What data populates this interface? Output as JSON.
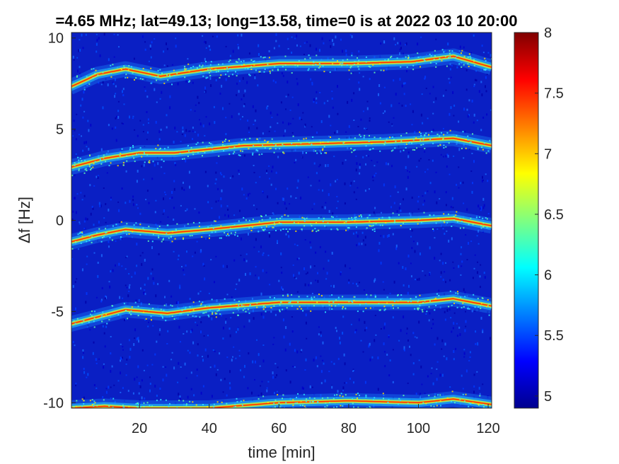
{
  "chart_data": {
    "type": "heatmap",
    "title": "=4.65 MHz;  lat=49.13; long=13.58, time=0 is at 2022 03 10 20:00",
    "xlabel": "time [min]",
    "ylabel": "Δf [Hz]",
    "xlim": [
      0.5,
      121
    ],
    "ylim": [
      -10.3,
      10.3
    ],
    "xticks": [
      20,
      40,
      60,
      80,
      100,
      120
    ],
    "yticks": [
      -10,
      -5,
      0,
      5,
      10
    ],
    "colorbar": {
      "colormap": "jet",
      "limits": [
        4.9,
        8
      ],
      "ticks": [
        5,
        5.5,
        6,
        6.5,
        7,
        7.5,
        8
      ]
    },
    "traces": [
      {
        "offset_hz": 10,
        "points": [
          [
            0,
            7.3
          ],
          [
            8,
            8.0
          ],
          [
            16,
            8.3
          ],
          [
            26,
            7.9
          ],
          [
            40,
            8.3
          ],
          [
            60,
            8.6
          ],
          [
            80,
            8.6
          ],
          [
            98,
            8.7
          ],
          [
            110,
            9.0
          ],
          [
            121,
            8.4
          ]
        ]
      },
      {
        "offset_hz": 5,
        "points": [
          [
            0,
            2.9
          ],
          [
            10,
            3.4
          ],
          [
            20,
            3.7
          ],
          [
            30,
            3.7
          ],
          [
            50,
            4.1
          ],
          [
            70,
            4.2
          ],
          [
            90,
            4.3
          ],
          [
            110,
            4.5
          ],
          [
            121,
            4.1
          ]
        ]
      },
      {
        "offset_hz": 0,
        "points": [
          [
            0,
            -1.2
          ],
          [
            8,
            -0.8
          ],
          [
            16,
            -0.5
          ],
          [
            28,
            -0.7
          ],
          [
            40,
            -0.5
          ],
          [
            60,
            -0.1
          ],
          [
            80,
            -0.1
          ],
          [
            100,
            0.0
          ],
          [
            110,
            0.1
          ],
          [
            121,
            -0.3
          ]
        ]
      },
      {
        "offset_hz": -5,
        "points": [
          [
            0,
            -5.7
          ],
          [
            8,
            -5.3
          ],
          [
            16,
            -4.9
          ],
          [
            28,
            -5.1
          ],
          [
            40,
            -4.8
          ],
          [
            60,
            -4.5
          ],
          [
            80,
            -4.5
          ],
          [
            100,
            -4.5
          ],
          [
            110,
            -4.3
          ],
          [
            121,
            -4.7
          ]
        ]
      },
      {
        "offset_hz": -10,
        "points": [
          [
            0,
            -10.3
          ],
          [
            10,
            -10.2
          ],
          [
            20,
            -10.3
          ],
          [
            40,
            -10.3
          ],
          [
            60,
            -10.0
          ],
          [
            80,
            -9.9
          ],
          [
            100,
            -10.0
          ],
          [
            110,
            -9.8
          ],
          [
            121,
            -10.1
          ]
        ]
      }
    ]
  }
}
